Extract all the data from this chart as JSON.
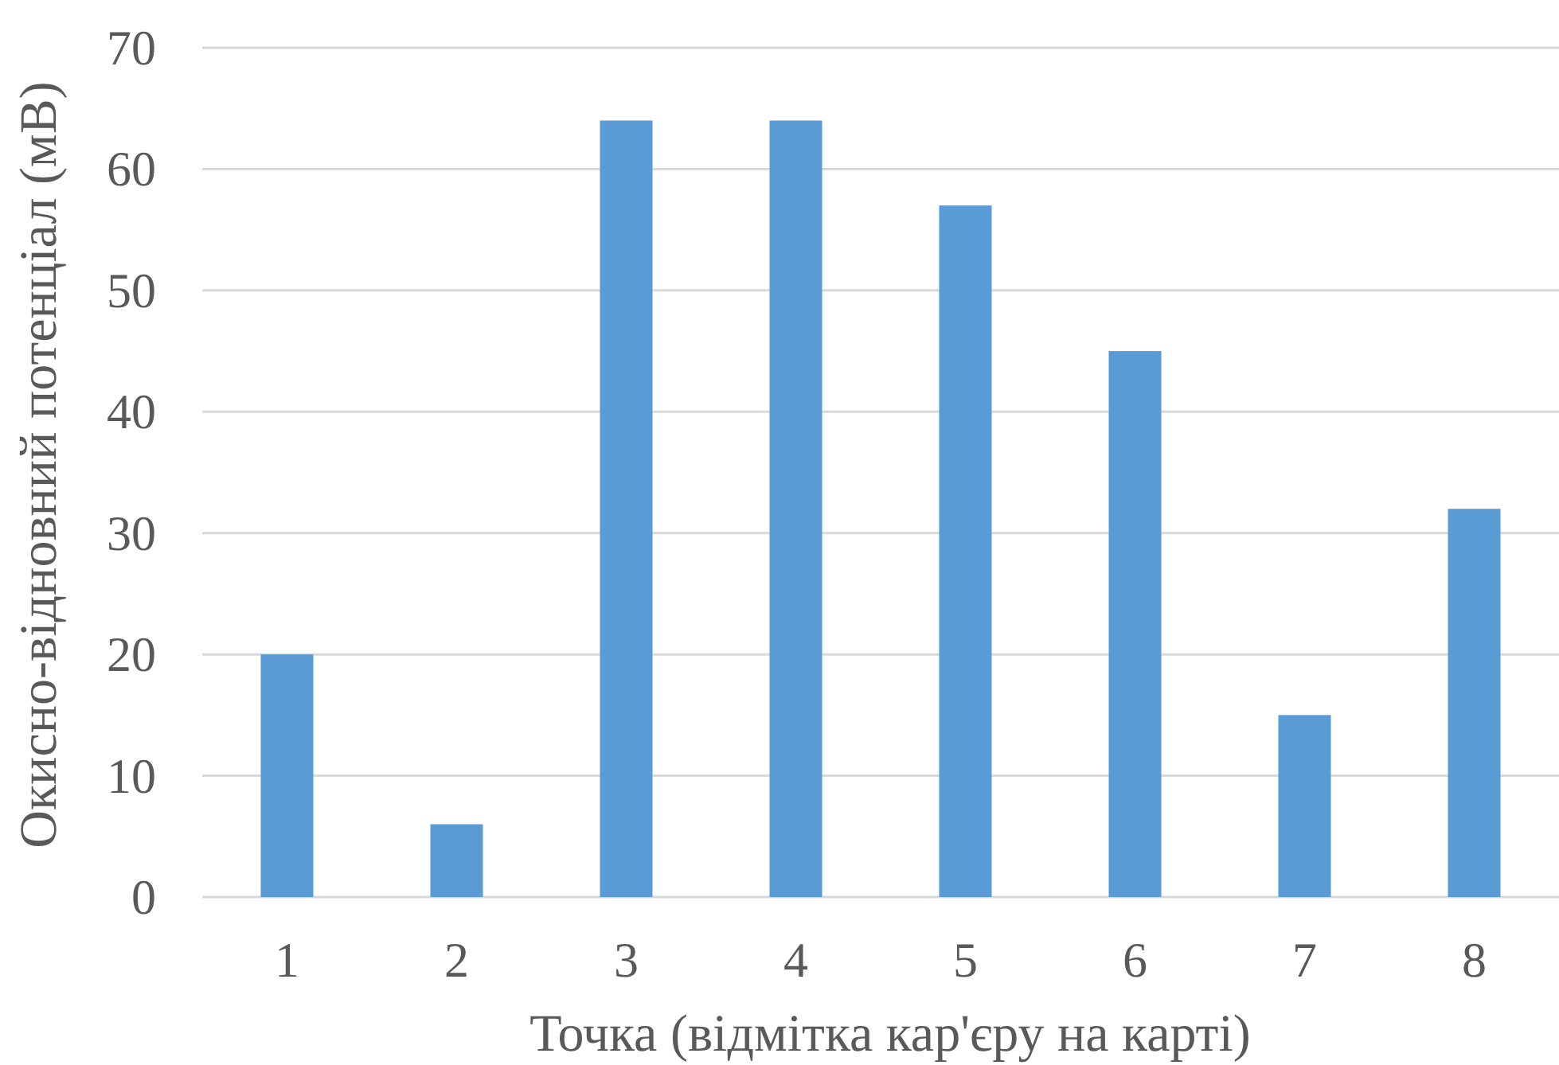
{
  "chart_data": {
    "type": "bar",
    "xlabel": "Точка (відмітка кар'єру на карті)",
    "ylabel": "Окисно-відновний потенціал (мВ)",
    "categories": [
      "1",
      "2",
      "3",
      "4",
      "5",
      "6",
      "7",
      "8"
    ],
    "values": [
      20,
      6,
      64,
      64,
      57,
      45,
      15,
      32
    ],
    "color": "#5b9bd5",
    "ylim": [
      0,
      70
    ],
    "yticks": [
      0,
      10,
      20,
      30,
      40,
      50,
      60,
      70
    ],
    "grid": "y"
  }
}
